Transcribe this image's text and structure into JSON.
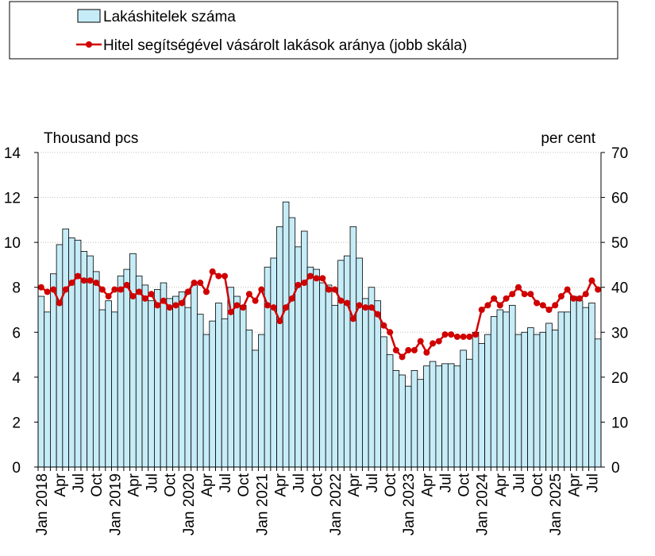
{
  "chart_data": {
    "type": "bar+line",
    "axis_label": "Thousand pcs",
    "axis2_label": "per cent",
    "categories": [
      "Jan 2018",
      null,
      null,
      "Apr",
      null,
      null,
      "Jul",
      null,
      null,
      "Oct",
      null,
      null,
      "Jan 2019",
      null,
      null,
      "Apr",
      null,
      null,
      "Jul",
      null,
      null,
      "Oct",
      null,
      null,
      "Jan 2020",
      null,
      null,
      "Apr",
      null,
      null,
      "Jul",
      null,
      null,
      "Oct",
      null,
      null,
      "Jan 2021",
      null,
      null,
      "Apr",
      null,
      null,
      "Jul",
      null,
      null,
      "Oct",
      null,
      null,
      "Jan 2022",
      null,
      null,
      "Apr",
      null,
      null,
      "Jul",
      null,
      null,
      "Oct",
      null,
      null,
      "Jan 2023",
      null,
      null,
      "Apr",
      null,
      null,
      "Jul",
      null,
      null,
      "Oct",
      null,
      null,
      "Jan 2024",
      null,
      null,
      "Apr",
      null,
      null,
      "Jul",
      null,
      null,
      "Oct",
      null,
      null,
      "Jan 2025",
      null,
      null,
      "Apr",
      null,
      null,
      "Jul",
      null
    ],
    "series": [
      {
        "name": "Lakáshitelek száma",
        "type": "bar",
        "color": "#c6ecf7",
        "values": [
          7.6,
          6.9,
          8.6,
          9.9,
          10.6,
          10.2,
          10.1,
          9.6,
          9.4,
          8.7,
          7.0,
          7.4,
          6.9,
          8.5,
          8.8,
          9.5,
          8.5,
          8.1,
          7.4,
          7.9,
          8.2,
          7.5,
          7.6,
          7.8,
          7.1,
          8.1,
          6.8,
          5.9,
          6.5,
          7.3,
          6.6,
          8.0,
          7.6,
          7.2,
          6.1,
          5.2,
          5.9,
          8.9,
          9.3,
          10.7,
          11.8,
          11.1,
          9.8,
          10.5,
          8.9,
          8.8,
          8.2,
          8.1,
          7.2,
          9.2,
          9.4,
          10.7,
          9.3,
          7.5,
          8.0,
          7.4,
          5.8,
          5.0,
          4.3,
          4.1,
          3.6,
          4.3,
          3.9,
          4.5,
          4.7,
          4.5,
          4.6,
          4.6,
          4.5,
          5.2,
          4.8,
          6.0,
          5.5,
          5.9,
          6.7,
          7.0,
          6.9,
          7.2,
          5.9,
          6.0,
          6.2,
          5.9,
          6.0,
          6.4,
          6.1,
          6.9,
          6.9,
          7.6,
          7.4,
          7.1,
          7.3,
          5.7
        ]
      },
      {
        "name": "Hitel segítségével vásárolt lakások aránya (jobb skála)",
        "type": "line",
        "axis": "y2",
        "color": "#d00000",
        "values": [
          40,
          39,
          39.5,
          36.5,
          39.5,
          41,
          42.5,
          41.5,
          41.5,
          41,
          39.5,
          38,
          39.5,
          39.5,
          40.5,
          38,
          39,
          37.5,
          38.5,
          36,
          37,
          35.5,
          36,
          36.5,
          39,
          41,
          41,
          39,
          43.5,
          42.5,
          42.5,
          34.5,
          36,
          35.5,
          38.5,
          37,
          39.5,
          36,
          35.5,
          32.5,
          35.5,
          37.5,
          40.5,
          41,
          42.5,
          42,
          42,
          39.5,
          39.5,
          37,
          36.5,
          33,
          36,
          35.5,
          35.5,
          34,
          31.5,
          30,
          26,
          24.5,
          26,
          26,
          28,
          25.5,
          27.5,
          28,
          29.5,
          29.5,
          29,
          29,
          29,
          29.5,
          35,
          36,
          37.5,
          36,
          37.5,
          38.5,
          40,
          38.5,
          38.5,
          36.5,
          36,
          35,
          36,
          38,
          39.5,
          37.5,
          37.5,
          38.5,
          41.5,
          39.5
        ]
      }
    ],
    "ylim": [
      0,
      14
    ],
    "yticks": [
      0,
      2,
      4,
      6,
      8,
      10,
      12,
      14
    ],
    "y2lim": [
      0,
      70
    ],
    "y2ticks": [
      0,
      10,
      20,
      30,
      40,
      50,
      60,
      70
    ],
    "grid": true
  }
}
